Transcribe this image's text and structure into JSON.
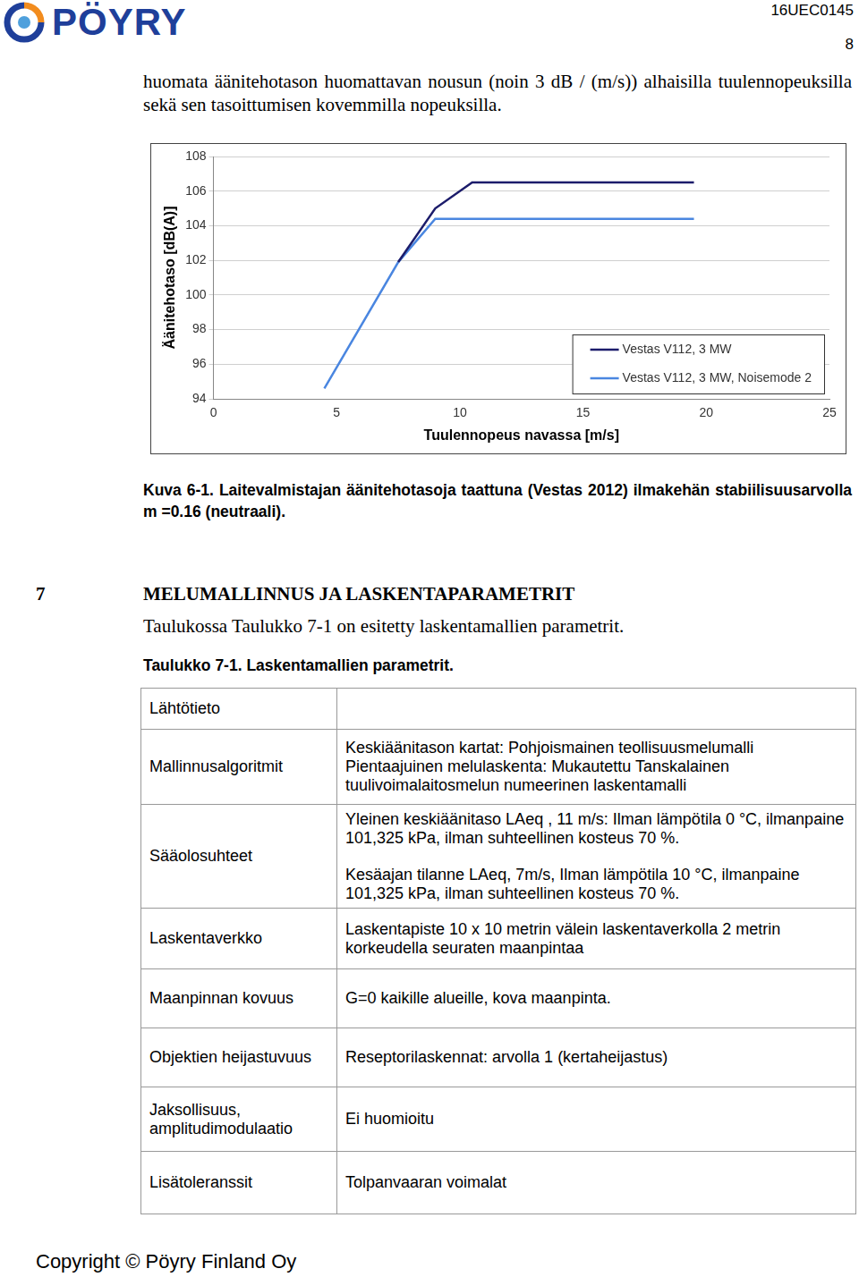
{
  "header": {
    "logo": "PÖYRY",
    "code": "16UEC0145",
    "page": "8"
  },
  "paragraph": "huomata äänitehotason huomattavan nousun (noin 3 dB / (m/s)) alhaisilla tuulennopeuksilla sekä sen tasoittumisen kovemmilla nopeuksilla.",
  "chart_data": {
    "type": "line",
    "x_label": "Tuulennopeus navassa [m/s]",
    "y_label": "Äänitehotaso [dB(A)]",
    "xlim": [
      0,
      25
    ],
    "xticks": [
      0,
      5,
      10,
      15,
      20,
      25
    ],
    "ylim": [
      94,
      108
    ],
    "yticks": [
      94,
      96,
      98,
      100,
      102,
      104,
      106,
      108
    ],
    "grid": "y",
    "legend": "lower right",
    "series": [
      {
        "name": "Vestas V112, 3 MW",
        "color": "#1c1c6b",
        "x": [
          7.5,
          9,
          10.5,
          19.5
        ],
        "values": [
          101.9,
          105.0,
          106.5,
          106.5
        ]
      },
      {
        "name": "Vestas V112, 3 MW, Noisemode 2",
        "color": "#4a86e0",
        "x": [
          4.5,
          7.5,
          9,
          19.5
        ],
        "values": [
          94.6,
          101.9,
          104.4,
          104.4
        ]
      }
    ]
  },
  "caption": "Kuva 6-1. Laitevalmistajan äänitehotasoja taattuna (Vestas 2012) ilmakehän stabiilisuusarvolla m =0.16 (neutraali).",
  "section": {
    "number": "7",
    "title": "MELUMALLINNUS JA LASKENTAPARAMETRIT"
  },
  "intro": "Taulukossa Taulukko 7-1 on esitetty laskentamallien parametrit.",
  "table_caption": "Taulukko 7-1. Laskentamallien parametrit.",
  "table": {
    "rows": [
      {
        "label": "Lähtötieto",
        "value": []
      },
      {
        "label": "Mallinnusalgoritmit",
        "value": [
          "Keskiäänitason kartat: Pohjoismainen teollisuusmelumalli",
          "Pientaajuinen melulaskenta: Mukautettu Tanskalainen tuulivoimalaitosmelun numeerinen laskentamalli"
        ]
      },
      {
        "label": "Sääolosuhteet",
        "value": [
          "Yleinen keskiäänitaso LAeq , 11 m/s: Ilman lämpötila 0 °C, ilmanpaine 101,325 kPa, ilman suhteellinen kosteus 70 %.",
          "Kesäajan tilanne LAeq, 7m/s, Ilman lämpötila 10 °C, ilmanpaine 101,325 kPa, ilman suhteellinen kosteus 70 %."
        ]
      },
      {
        "label": "Laskentaverkko",
        "value": [
          "Laskentapiste 10 x 10 metrin välein laskentaverkolla 2 metrin korkeudella seuraten maanpintaa"
        ]
      },
      {
        "label": "Maanpinnan kovuus",
        "value": [
          "G=0 kaikille alueille, kova maanpinta."
        ]
      },
      {
        "label": "Objektien heijastuvuus",
        "value": [
          "Reseptorilaskennat: arvolla 1 (kertaheijastus)"
        ]
      },
      {
        "label": "Jaksollisuus, amplitudimodulaatio",
        "value": [
          "Ei huomioitu"
        ]
      },
      {
        "label": "Lisätoleranssit",
        "value": [
          "Tolpanvaaran voimalat"
        ]
      }
    ]
  },
  "footer": "Copyright © Pöyry Finland Oy"
}
